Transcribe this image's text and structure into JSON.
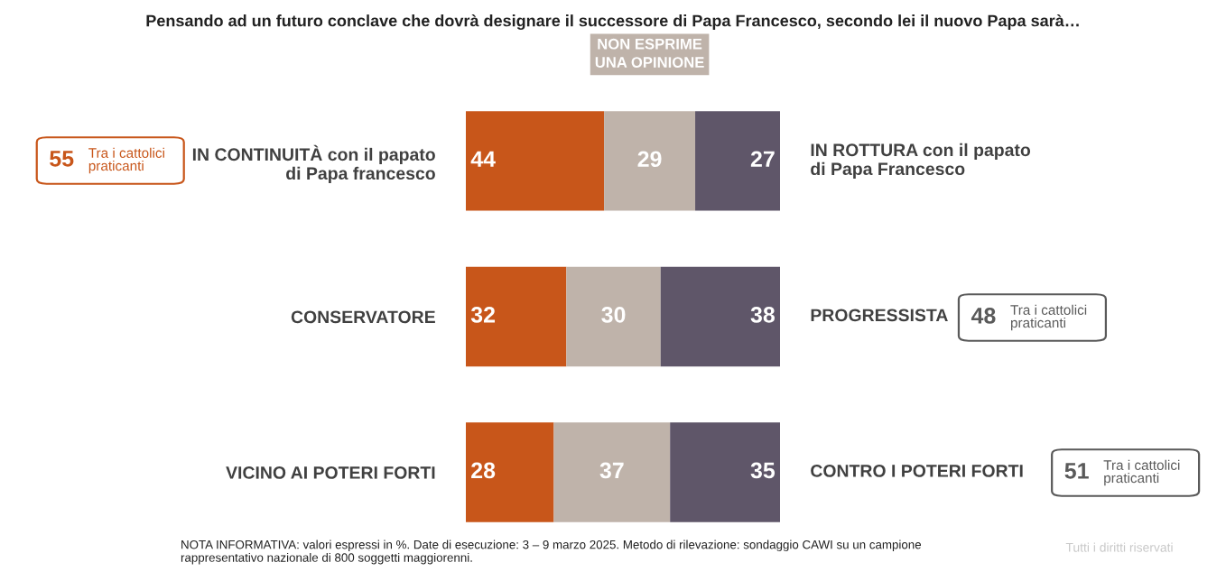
{
  "chart_data": {
    "type": "bar",
    "orientation": "horizontal",
    "stacked": true,
    "title": "Pensando ad un futuro conclave che dovrà designare il successore di Papa Francesco, secondo lei il nuovo Papa sarà…",
    "categories": [
      "IN CONTINUITÀ con il papato\ndi Papa francesco",
      "CONSERVATORE",
      "VICINO AI POTERI FORTI"
    ],
    "series": [
      {
        "color": "#c8561a",
        "values": [
          44,
          32,
          28
        ]
      },
      {
        "name": "NON ESPRIME\nUNA OPINIONE",
        "color": "#bfb3aa",
        "values": [
          29,
          30,
          37
        ]
      },
      {
        "color": "#5f5669",
        "values": [
          27,
          38,
          35
        ]
      }
    ],
    "xlim": [
      0,
      100
    ],
    "tick_labels": "y",
    "data_labels": true,
    "grid": false,
    "legend": false,
    "annotations": [
      "IN ROTTURA con il papato\ndi Papa Francesco",
      "PROGRESSISTA",
      "CONTRO I POTERI FORTI",
      "55",
      "Tra i cattolici\npraticanti",
      "48",
      "Tra i cattolici\npraticanti",
      "51",
      "Tra i cattolici\npraticanti",
      "NOTA INFORMATIVA: valori espressi in %. Date di esecuzione: 3 – 9 marzo 2025. Metodo di rilevazione: sondaggio CAWI su un campione\nrappresentativo nazionale di 800 soggetti maggiorenni.",
      "Tutti i diritti riservati"
    ]
  }
}
